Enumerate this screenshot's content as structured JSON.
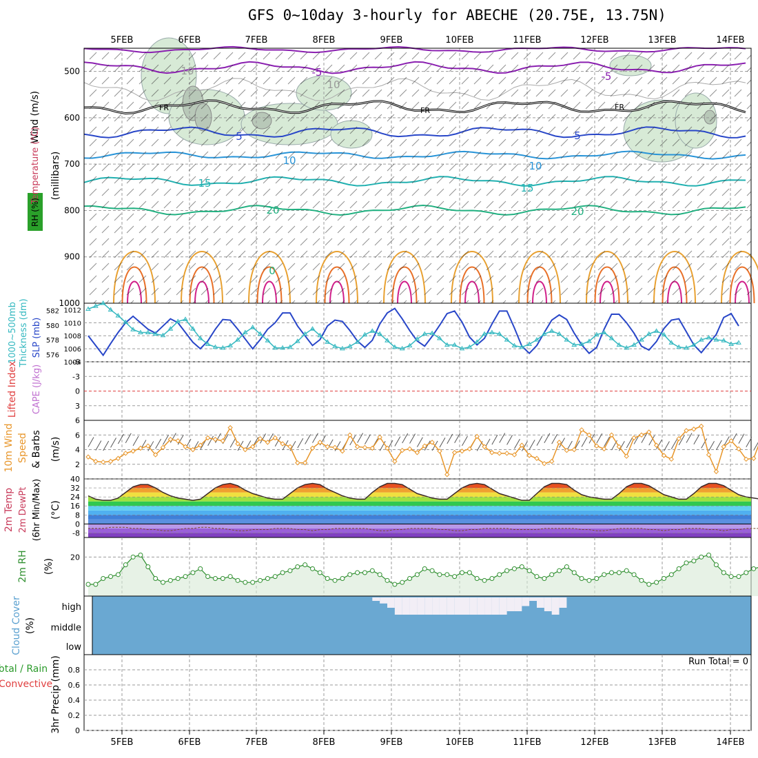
{
  "title": "GFS 0~10day 3-hourly for ABECHE (20.75E, 13.75N)",
  "colors": {
    "grid": "#9a9a9a",
    "rh_fill": "#d7ead6",
    "slp": "#2846c8",
    "thickness": "#34b8c0",
    "wind10": "#e8962a",
    "lifted_zero": "#e04040",
    "rh2m": "#2f8f2f",
    "cloud": "#6aa8d2",
    "cloud_clear": "#f2eef6"
  },
  "panels": {
    "upper": {
      "ylabel_wind": "Wind (m/s)",
      "ylabel_temp": "Temperature (°C)",
      "ylabel_rh": "RH (%)",
      "ylabel_units": "(millibars)",
      "y_ticks": [
        "500",
        "600",
        "700",
        "800",
        "900",
        "1000"
      ],
      "freezing_label": "FR",
      "isotherm_labels": [
        "-5",
        "5",
        "10",
        "15",
        "20",
        "-5",
        "5",
        "10",
        "15",
        "20",
        "0",
        "10",
        "10"
      ]
    },
    "slp": {
      "ylabel_left": "Thickness (dm)",
      "ylabel_left2": "1000~500mb",
      "ylabel_right": "SLP (mb)",
      "thickness_ticks": [
        "582",
        "580",
        "578",
        "576"
      ],
      "slp_ticks": [
        "1012",
        "1010",
        "1008",
        "1006",
        "1004"
      ]
    },
    "cape": {
      "ylabel_li": "Lifted Index",
      "ylabel_cape": "CAPE (J/kg)",
      "ticks": [
        "-6",
        "-3",
        "0",
        "3",
        "6"
      ]
    },
    "wind10": {
      "ylabel1": "10m Wind",
      "ylabel2": "Speed",
      "ylabel3": "& Barbs",
      "units": "(m/s)",
      "ticks": [
        "6",
        "4",
        "2"
      ]
    },
    "temp2m": {
      "ylabel1": "2m Temp",
      "ylabel2": "2m DewPt",
      "ylabel3": "(6hr Min/Max)",
      "units": "(°C)",
      "ticks": [
        "40",
        "32",
        "24",
        "16",
        "8",
        "0",
        "-8"
      ]
    },
    "rh2m": {
      "ylabel": "2m RH",
      "units": "(%)",
      "ticks": [
        "20"
      ]
    },
    "cloud": {
      "ylabel": "Cloud Cover",
      "units": "(%)",
      "levels": [
        "high",
        "middle",
        "low"
      ]
    },
    "precip": {
      "ylabel1": "Total / Rain",
      "ylabel2": "Convective",
      "ylabel3": "3hr Precip (mm)",
      "ticks": [
        "0.8",
        "0.6",
        "0.4",
        "0.2",
        "0"
      ],
      "run_total": "Run Total = 0"
    }
  },
  "x_labels": [
    "5FEB",
    "6FEB",
    "7FEB",
    "8FEB",
    "9FEB",
    "10FEB",
    "11FEB",
    "12FEB",
    "13FEB",
    "14FEB"
  ],
  "chart_data": {
    "type": "line",
    "x_start": "4FEB 12Z",
    "x_step_hours": 3,
    "series": [
      {
        "key": "slp",
        "values": [
          1008,
          1006.5,
          1005,
          1006.8,
          1008.5,
          1010,
          1011,
          1010,
          1009,
          1008.4,
          1009.5,
          1010.6,
          1010,
          1008.5,
          1007,
          1006,
          1007.2,
          1009,
          1010.5,
          1010.4,
          1009,
          1007.5,
          1006,
          1007.4,
          1009,
          1010,
          1011.5,
          1011.5,
          1009.5,
          1008,
          1006.5,
          1007.4,
          1009.5,
          1010.4,
          1010.2,
          1008.8,
          1007.2,
          1006.2,
          1007.3,
          1009.8,
          1011.5,
          1012.2,
          1010.6,
          1008.8,
          1007.2,
          1006.4,
          1007.9,
          1009.6,
          1011.4,
          1011.8,
          1010.1,
          1007.8,
          1006.6,
          1007.6,
          1009.8,
          1011.8,
          1011.8,
          1009.2,
          1006.4,
          1005.3,
          1006.5,
          1008.5,
          1010.4,
          1011.2,
          1010.5,
          1008.4,
          1006.6,
          1005.3,
          1006.2,
          1009,
          1011.3,
          1011.3,
          1010,
          1008.4,
          1006.4,
          1005.8,
          1007.1,
          1009.1,
          1010.4,
          1010.6,
          1008.6,
          1006.6,
          1005.4,
          1006.8,
          1008.2,
          1010.8,
          1011.4,
          1009.5
        ]
      },
      {
        "key": "thickness",
        "values": [
          582.2,
          582.6,
          583.0,
          582.1,
          581.3,
          580.4,
          579.4,
          579.0,
          579.0,
          578.8,
          578.6,
          579.5,
          580.5,
          580.8,
          579.5,
          578.2,
          577.4,
          577.0,
          576.9,
          577.2,
          578.0,
          579.0,
          579.7,
          578.8,
          577.9,
          576.9,
          576.9,
          577.0,
          577.8,
          578.8,
          579.5,
          578.6,
          577.7,
          577.1,
          576.8,
          577.1,
          577.7,
          578.7,
          579.2,
          578.8,
          577.9,
          577.0,
          576.8,
          577.2,
          578.1,
          578.8,
          578.9,
          578.2,
          577.3,
          577.3,
          576.8,
          577.0,
          577.7,
          578.8,
          579.0,
          578.8,
          578.0,
          577.2,
          577.0,
          577.4,
          578.0,
          578.8,
          579.2,
          578.8,
          578.0,
          577.3,
          577.4,
          577.8,
          578.7,
          579.0,
          578.2,
          577.3,
          576.9,
          577.3,
          578.0,
          578.8,
          579.2,
          578.7,
          577.6,
          577.0,
          576.9,
          577.3,
          578.0,
          578.3,
          578.0,
          577.9,
          577.4,
          577.6
        ]
      },
      {
        "key": "wind10",
        "values": [
          3.0,
          2.4,
          2.3,
          2.4,
          2.8,
          3.5,
          3.8,
          4.2,
          4.5,
          3.3,
          4.3,
          5.4,
          5.2,
          4.4,
          4.0,
          4.6,
          5.6,
          5.4,
          5.2,
          7.0,
          4.8,
          4.0,
          4.4,
          5.5,
          5.0,
          5.6,
          4.8,
          4.4,
          2.2,
          2.2,
          4.2,
          5.0,
          4.4,
          4.3,
          3.8,
          6.0,
          4.4,
          4.3,
          4.2,
          5.7,
          4.2,
          2.4,
          3.9,
          4.1,
          3.6,
          4.5,
          5.0,
          3.8,
          0.6,
          3.6,
          3.8,
          4.1,
          5.8,
          4.4,
          3.6,
          3.5,
          3.5,
          3.3,
          4.6,
          3.2,
          2.8,
          2.1,
          2.4,
          5.0,
          3.9,
          4.0,
          6.7,
          6.0,
          4.5,
          4.1,
          6.0,
          4.4,
          3.1,
          5.6,
          6.0,
          6.4,
          4.6,
          3.2,
          2.7,
          5.5,
          6.6,
          6.8,
          7.2,
          3.3,
          1.0,
          4.4,
          5.2,
          4.1,
          2.7,
          2.8,
          5.5,
          4.6,
          5.4,
          6.0
        ]
      },
      {
        "key": "temp2m",
        "values": [
          25,
          22,
          21,
          21,
          23,
          28,
          33,
          35,
          35,
          32,
          28,
          25,
          23,
          22,
          21,
          22,
          27,
          32,
          35,
          36,
          34,
          30,
          27,
          25,
          23,
          22,
          22,
          27,
          32,
          35,
          36,
          35,
          31,
          28,
          25,
          23,
          22,
          22,
          28,
          33,
          36,
          36,
          35,
          31,
          27,
          25,
          23,
          22,
          22,
          27,
          32,
          35,
          36,
          35,
          31,
          27,
          25,
          23,
          21,
          21,
          27,
          33,
          36,
          36,
          35,
          30,
          26,
          24,
          23,
          22,
          22,
          27,
          33,
          36,
          36,
          34,
          30,
          26,
          24,
          22,
          22,
          27,
          33,
          36,
          36,
          34,
          30,
          26,
          24,
          23,
          22,
          22
        ]
      },
      {
        "key": "dewpt2m",
        "values": [
          -4,
          -4,
          -4,
          -3,
          -3,
          -3,
          -4,
          -4,
          -5,
          -5,
          -6,
          -6,
          -5,
          -4,
          -4,
          -3,
          -3,
          -4,
          -4,
          -5,
          -6,
          -6,
          -5,
          -5,
          -5,
          -4,
          -4,
          -4,
          -5,
          -5,
          -6,
          -5,
          -5,
          -4,
          -4,
          -4,
          -4,
          -4,
          -5,
          -6,
          -6,
          -5,
          -5,
          -4,
          -4,
          -4,
          -4,
          -5,
          -5,
          -6,
          -6,
          -5,
          -5,
          -4,
          -4,
          -4,
          -4,
          -5,
          -5,
          -5,
          -5,
          -4,
          -4,
          -4,
          -4,
          -4,
          -5,
          -5,
          -6,
          -6,
          -5,
          -4,
          -4,
          -4,
          -4,
          -5,
          -5,
          -6,
          -5,
          -5,
          -4,
          -4,
          -4,
          -5,
          -5,
          -6,
          -5,
          -5,
          -4,
          -4,
          -4,
          -5
        ]
      },
      {
        "key": "rh2m",
        "values": [
          6,
          6,
          9,
          10,
          11,
          16,
          20,
          21,
          15,
          9,
          7,
          8,
          9,
          10,
          12,
          14,
          10,
          9,
          9,
          10,
          8,
          7,
          7,
          8,
          9,
          10,
          12,
          13,
          15,
          16,
          14,
          12,
          9,
          8,
          9,
          11,
          12,
          12,
          13,
          11,
          8,
          6,
          7,
          9,
          11,
          14,
          13,
          11,
          11,
          10,
          12,
          12,
          9,
          8,
          9,
          11,
          13,
          14,
          15,
          13,
          10,
          9,
          11,
          13,
          15,
          12,
          9,
          8,
          9,
          11,
          12,
          12,
          13,
          11,
          8,
          6,
          7,
          9,
          11,
          14,
          17,
          18,
          20,
          21,
          16,
          12,
          10,
          10,
          12,
          14,
          15,
          16,
          16,
          16
        ]
      }
    ],
    "cloud_high": [
      0,
      0,
      0,
      0,
      0,
      0,
      0,
      0,
      0,
      0,
      0,
      0,
      0,
      0,
      0,
      0,
      0,
      0,
      0,
      0,
      0,
      0,
      0,
      0,
      0,
      0,
      0,
      0,
      0,
      0,
      0,
      0,
      0,
      0,
      0,
      0,
      0,
      0,
      20,
      35,
      60,
      100,
      100,
      100,
      100,
      100,
      100,
      100,
      100,
      100,
      100,
      100,
      100,
      100,
      100,
      100,
      80,
      80,
      50,
      20,
      60,
      80,
      100,
      60,
      0,
      0,
      0,
      0,
      0,
      0,
      0,
      0,
      0,
      0,
      0,
      0,
      0,
      0,
      0,
      0,
      0,
      0,
      0,
      0,
      0,
      0,
      0,
      0,
      0,
      0,
      0,
      0,
      0,
      0
    ],
    "precip": [],
    "ylim_slp": [
      1004,
      1013
    ],
    "ylim_thickness": [
      575,
      583
    ],
    "ylim_wind10": [
      0,
      8
    ],
    "ylim_temp": [
      -12,
      40
    ],
    "ylim_rh2m": [
      0,
      30
    ]
  }
}
